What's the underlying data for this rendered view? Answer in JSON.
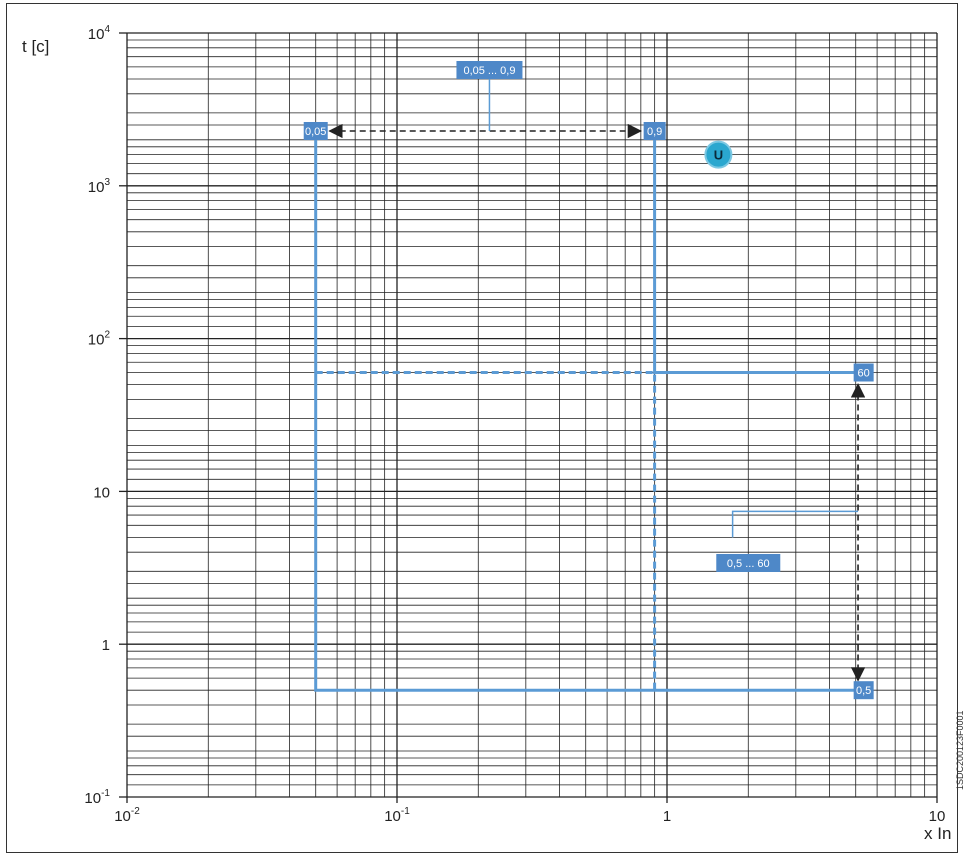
{
  "chart_data": {
    "type": "line",
    "xscale": "log",
    "yscale": "log",
    "xlim": [
      0.01,
      10
    ],
    "ylim": [
      0.1,
      10000
    ],
    "xlabel": "x In",
    "ylabel": "t [c]",
    "x_ticks": [
      {
        "base": "10",
        "exp": "-2"
      },
      {
        "base": "10",
        "exp": "-1"
      },
      {
        "base": "1",
        "exp": ""
      },
      {
        "base": "10",
        "exp": ""
      }
    ],
    "y_ticks": [
      {
        "base": "10",
        "exp": "4"
      },
      {
        "base": "10",
        "exp": "3"
      },
      {
        "base": "10",
        "exp": "2"
      },
      {
        "base": "10",
        "exp": ""
      },
      {
        "base": "1",
        "exp": ""
      },
      {
        "base": "10",
        "exp": "-1"
      }
    ],
    "grid": true,
    "series": [
      {
        "style": "solid",
        "color": "#5b9bd5",
        "points": [
          [
            0.05,
            2500
          ],
          [
            0.05,
            0.5
          ],
          [
            5,
            0.5
          ]
        ]
      },
      {
        "style": "solid",
        "color": "#5b9bd5",
        "points": [
          [
            0.9,
            2500
          ],
          [
            0.9,
            60
          ],
          [
            5.5,
            60
          ]
        ]
      },
      {
        "style": "dashed",
        "color": "#5b9bd5",
        "points": [
          [
            0.05,
            60
          ],
          [
            0.9,
            60
          ],
          [
            0.9,
            0.5
          ]
        ]
      }
    ],
    "annotations": {
      "threshold_low": "0,05",
      "threshold_high": "0,9",
      "threshold_range": "0,05 ... 0,9",
      "time_high": "60",
      "time_low": "0,5",
      "time_range": "0,5 ... 60",
      "marker": "U"
    },
    "colors": {
      "curve": "#5b9bd5",
      "label_box": "#4e88c8",
      "marker": "#2aa7cf"
    }
  },
  "figure_code": "1SDC200123F0001"
}
